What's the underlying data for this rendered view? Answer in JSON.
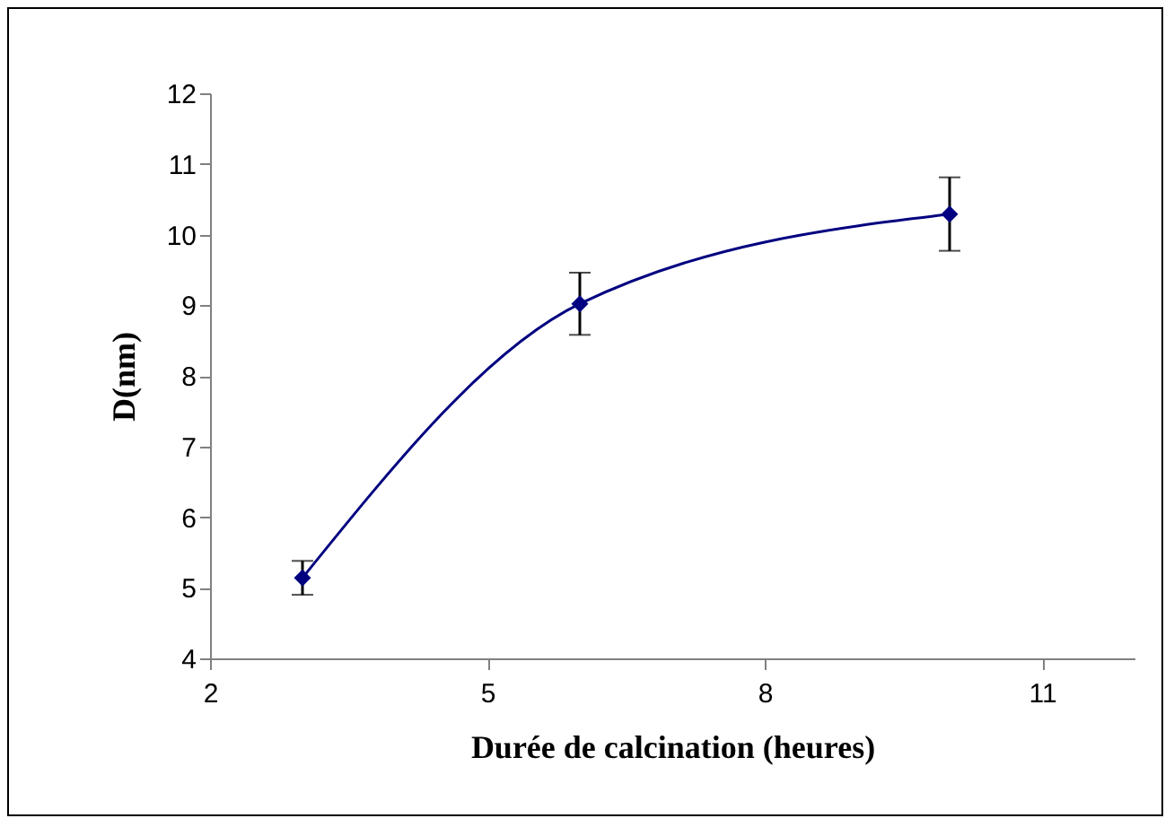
{
  "chart_data": {
    "type": "line",
    "xlabel": "Durée de calcination (heures)",
    "ylabel": "D(nm)",
    "x": [
      3,
      6,
      10
    ],
    "series": [
      {
        "color": "#000080",
        "values": [
          5.14,
          9.02,
          10.29
        ],
        "errors": [
          0.24,
          0.44,
          0.52
        ]
      }
    ],
    "xlim": [
      2,
      12
    ],
    "xticks": [
      2,
      5,
      8,
      11
    ],
    "ylim": [
      4,
      12
    ],
    "yticks": [
      4,
      5,
      6,
      7,
      8,
      9,
      10,
      11,
      12
    ],
    "grid": false,
    "marker": "diamond",
    "line_style": "solid"
  }
}
